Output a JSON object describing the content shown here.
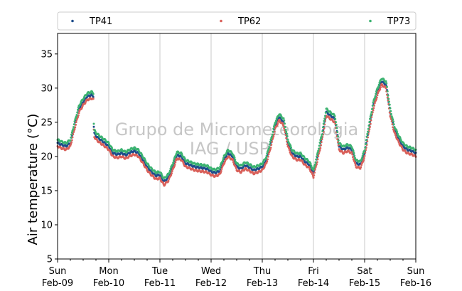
{
  "chart_data": {
    "type": "scatter",
    "title": "",
    "xlabel": "",
    "ylabel": "Air temperature (°C)",
    "ylim": [
      5,
      38
    ],
    "y_ticks": [
      5,
      10,
      15,
      20,
      25,
      30,
      35
    ],
    "xlim_days": [
      0,
      7
    ],
    "x_major_ticks": [
      {
        "day": 0,
        "line1": "Sun",
        "line2": "Feb-09"
      },
      {
        "day": 1,
        "line1": "Mon",
        "line2": "Feb-10"
      },
      {
        "day": 2,
        "line1": "Tue",
        "line2": "Feb-11"
      },
      {
        "day": 3,
        "line1": "Wed",
        "line2": "Feb-12"
      },
      {
        "day": 4,
        "line1": "Thu",
        "line2": "Feb-13"
      },
      {
        "day": 5,
        "line1": "Fri",
        "line2": "Feb-14"
      },
      {
        "day": 6,
        "line1": "Sat",
        "line2": "Feb-15"
      },
      {
        "day": 7,
        "line1": "Sun",
        "line2": "Feb-16"
      }
    ],
    "grid": "vertical at day boundaries",
    "legend_position": "top, above plot",
    "watermark": [
      "Grupo de Micrometeorologia",
      "IAG / USP"
    ],
    "series": [
      {
        "name": "TP41",
        "color": "#1f4e8c",
        "offset": 0.0
      },
      {
        "name": "TP62",
        "color": "#d9605a",
        "offset": -0.5
      },
      {
        "name": "TP73",
        "color": "#3cb371",
        "offset": 0.45
      }
    ],
    "base_curve": {
      "x_days": [
        0,
        0.08,
        0.17,
        0.25,
        0.33,
        0.42,
        0.5,
        0.58,
        0.67,
        0.7,
        0.71,
        0.75,
        0.83,
        0.92,
        1.0,
        1.08,
        1.17,
        1.25,
        1.33,
        1.42,
        1.5,
        1.58,
        1.67,
        1.75,
        1.83,
        1.92,
        2.0,
        2.08,
        2.17,
        2.25,
        2.33,
        2.42,
        2.5,
        2.58,
        2.67,
        2.75,
        2.83,
        2.92,
        3.0,
        3.08,
        3.17,
        3.25,
        3.33,
        3.42,
        3.5,
        3.58,
        3.67,
        3.75,
        3.83,
        3.92,
        4.0,
        4.08,
        4.17,
        4.25,
        4.33,
        4.42,
        4.5,
        4.58,
        4.67,
        4.75,
        4.83,
        4.92,
        5.0,
        5.08,
        5.17,
        5.25,
        5.33,
        5.42,
        5.5,
        5.58,
        5.67,
        5.75,
        5.83,
        5.92,
        6.0,
        6.08,
        6.17,
        6.25,
        6.33,
        6.42,
        6.5,
        6.58,
        6.67,
        6.71,
        6.75,
        6.83,
        6.92,
        7.0
      ],
      "temp": [
        22.0,
        21.7,
        21.5,
        22.0,
        24.5,
        27.0,
        28.0,
        28.8,
        29.0,
        28.8,
        23.5,
        23.0,
        22.5,
        22.0,
        21.5,
        20.5,
        20.3,
        20.5,
        20.2,
        20.6,
        20.8,
        20.5,
        19.5,
        18.5,
        17.8,
        17.2,
        17.3,
        16.3,
        17.0,
        18.5,
        20.2,
        20.0,
        19.0,
        18.8,
        18.5,
        18.4,
        18.3,
        18.2,
        17.8,
        17.6,
        17.9,
        19.5,
        20.5,
        20.0,
        18.5,
        18.2,
        18.7,
        18.4,
        18.0,
        18.2,
        18.5,
        19.5,
        22.0,
        24.5,
        25.8,
        25.0,
        22.0,
        20.5,
        20.0,
        20.0,
        19.3,
        18.8,
        17.5,
        20.0,
        23.0,
        26.5,
        26.0,
        25.5,
        21.5,
        21.0,
        21.3,
        21.0,
        19.0,
        18.8,
        20.5,
        24.0,
        27.5,
        29.5,
        31.0,
        30.5,
        26.5,
        24.0,
        22.5,
        22.0,
        21.5,
        21.0,
        20.8,
        20.5
      ]
    }
  }
}
